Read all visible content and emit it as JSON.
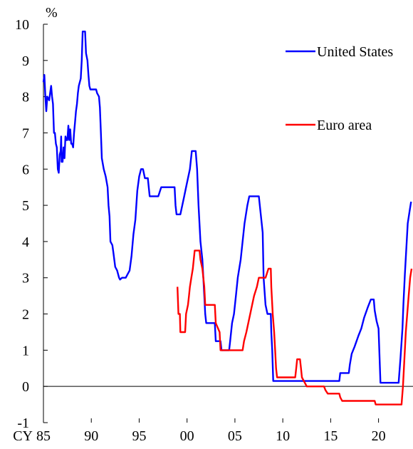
{
  "chart_data": {
    "type": "line",
    "title": "",
    "ylabel": "%",
    "xlabel": "",
    "x_axis_prefix": "CY",
    "ylim": [
      -1,
      10
    ],
    "xlim": [
      1985,
      2023.6
    ],
    "yticks": [
      "-1",
      "0",
      "1",
      "2",
      "3",
      "4",
      "5",
      "6",
      "7",
      "8",
      "9",
      "10"
    ],
    "xticks": [
      {
        "x": 1985,
        "label": "85"
      },
      {
        "x": 1990,
        "label": "90"
      },
      {
        "x": 1995,
        "label": "95"
      },
      {
        "x": 2000,
        "label": "00"
      },
      {
        "x": 2005,
        "label": "05"
      },
      {
        "x": 2010,
        "label": "10"
      },
      {
        "x": 2015,
        "label": "15"
      },
      {
        "x": 2020,
        "label": "20"
      }
    ],
    "grid": false,
    "zero_line": true,
    "legend": "right",
    "series": [
      {
        "name": "United States",
        "color": "#0000ff",
        "points": [
          [
            1985.0,
            8.4
          ],
          [
            1985.1,
            8.6
          ],
          [
            1985.2,
            8.0
          ],
          [
            1985.3,
            7.6
          ],
          [
            1985.4,
            8.0
          ],
          [
            1985.6,
            7.9
          ],
          [
            1985.7,
            8.1
          ],
          [
            1985.8,
            8.3
          ],
          [
            1985.9,
            8.0
          ],
          [
            1986.0,
            7.8
          ],
          [
            1986.1,
            7.0
          ],
          [
            1986.2,
            7.0
          ],
          [
            1986.3,
            6.7
          ],
          [
            1986.4,
            6.6
          ],
          [
            1986.5,
            6.0
          ],
          [
            1986.6,
            5.9
          ],
          [
            1986.7,
            6.4
          ],
          [
            1986.8,
            6.5
          ],
          [
            1986.85,
            6.9
          ],
          [
            1986.9,
            6.2
          ],
          [
            1987.0,
            6.2
          ],
          [
            1987.1,
            6.6
          ],
          [
            1987.2,
            6.3
          ],
          [
            1987.3,
            6.9
          ],
          [
            1987.4,
            6.8
          ],
          [
            1987.5,
            6.8
          ],
          [
            1987.6,
            7.2
          ],
          [
            1987.7,
            6.8
          ],
          [
            1987.8,
            7.1
          ],
          [
            1987.9,
            6.7
          ],
          [
            1988.0,
            6.7
          ],
          [
            1988.1,
            6.6
          ],
          [
            1988.2,
            7.0
          ],
          [
            1988.3,
            7.3
          ],
          [
            1988.4,
            7.6
          ],
          [
            1988.5,
            7.8
          ],
          [
            1988.6,
            8.1
          ],
          [
            1988.7,
            8.3
          ],
          [
            1988.9,
            8.5
          ],
          [
            1989.0,
            9.0
          ],
          [
            1989.1,
            9.8
          ],
          [
            1989.2,
            9.8
          ],
          [
            1989.35,
            9.8
          ],
          [
            1989.45,
            9.2
          ],
          [
            1989.6,
            9.0
          ],
          [
            1989.7,
            8.6
          ],
          [
            1989.8,
            8.3
          ],
          [
            1989.9,
            8.2
          ],
          [
            1990.1,
            8.2
          ],
          [
            1990.3,
            8.2
          ],
          [
            1990.5,
            8.2
          ],
          [
            1990.6,
            8.1
          ],
          [
            1990.8,
            8.0
          ],
          [
            1990.9,
            7.7
          ],
          [
            1991.0,
            7.0
          ],
          [
            1991.1,
            6.3
          ],
          [
            1991.3,
            6.0
          ],
          [
            1991.5,
            5.8
          ],
          [
            1991.7,
            5.5
          ],
          [
            1991.8,
            5.0
          ],
          [
            1991.9,
            4.7
          ],
          [
            1992.0,
            4.0
          ],
          [
            1992.2,
            3.9
          ],
          [
            1992.3,
            3.7
          ],
          [
            1992.5,
            3.3
          ],
          [
            1992.7,
            3.2
          ],
          [
            1992.9,
            3.0
          ],
          [
            1993.0,
            2.95
          ],
          [
            1993.2,
            3.0
          ],
          [
            1993.4,
            3.0
          ],
          [
            1993.6,
            3.0
          ],
          [
            1993.8,
            3.1
          ],
          [
            1994.0,
            3.2
          ],
          [
            1994.2,
            3.6
          ],
          [
            1994.4,
            4.2
          ],
          [
            1994.6,
            4.6
          ],
          [
            1994.8,
            5.4
          ],
          [
            1995.0,
            5.8
          ],
          [
            1995.2,
            6.0
          ],
          [
            1995.4,
            6.0
          ],
          [
            1995.6,
            5.75
          ],
          [
            1995.9,
            5.75
          ],
          [
            1996.1,
            5.25
          ],
          [
            1996.5,
            5.25
          ],
          [
            1997.0,
            5.25
          ],
          [
            1997.3,
            5.5
          ],
          [
            1997.8,
            5.5
          ],
          [
            1998.3,
            5.5
          ],
          [
            1998.7,
            5.5
          ],
          [
            1998.8,
            5.0
          ],
          [
            1998.9,
            4.75
          ],
          [
            1999.3,
            4.75
          ],
          [
            1999.5,
            5.0
          ],
          [
            1999.7,
            5.25
          ],
          [
            1999.9,
            5.5
          ],
          [
            2000.1,
            5.75
          ],
          [
            2000.3,
            6.0
          ],
          [
            2000.5,
            6.5
          ],
          [
            2000.9,
            6.5
          ],
          [
            2001.05,
            6.0
          ],
          [
            2001.2,
            5.0
          ],
          [
            2001.4,
            4.0
          ],
          [
            2001.6,
            3.5
          ],
          [
            2001.8,
            2.5
          ],
          [
            2001.9,
            2.0
          ],
          [
            2002.0,
            1.75
          ],
          [
            2002.5,
            1.75
          ],
          [
            2002.9,
            1.75
          ],
          [
            2003.0,
            1.25
          ],
          [
            2003.5,
            1.25
          ],
          [
            2003.6,
            1.0
          ],
          [
            2004.4,
            1.0
          ],
          [
            2004.5,
            1.25
          ],
          [
            2004.7,
            1.75
          ],
          [
            2004.9,
            2.0
          ],
          [
            2005.1,
            2.5
          ],
          [
            2005.3,
            3.0
          ],
          [
            2005.6,
            3.5
          ],
          [
            2005.8,
            4.0
          ],
          [
            2006.0,
            4.5
          ],
          [
            2006.3,
            5.0
          ],
          [
            2006.5,
            5.25
          ],
          [
            2007.5,
            5.25
          ],
          [
            2007.7,
            4.75
          ],
          [
            2007.9,
            4.25
          ],
          [
            2008.0,
            3.0
          ],
          [
            2008.2,
            2.25
          ],
          [
            2008.4,
            2.0
          ],
          [
            2008.75,
            2.0
          ],
          [
            2008.8,
            1.5
          ],
          [
            2008.9,
            1.0
          ],
          [
            2009.0,
            0.15
          ],
          [
            2010.0,
            0.15
          ],
          [
            2012.0,
            0.15
          ],
          [
            2014.0,
            0.15
          ],
          [
            2015.9,
            0.15
          ],
          [
            2016.0,
            0.37
          ],
          [
            2016.9,
            0.37
          ],
          [
            2017.0,
            0.6
          ],
          [
            2017.2,
            0.9
          ],
          [
            2017.5,
            1.1
          ],
          [
            2017.9,
            1.4
          ],
          [
            2018.2,
            1.6
          ],
          [
            2018.5,
            1.9
          ],
          [
            2018.9,
            2.2
          ],
          [
            2019.2,
            2.4
          ],
          [
            2019.5,
            2.4
          ],
          [
            2019.6,
            2.1
          ],
          [
            2019.8,
            1.8
          ],
          [
            2020.0,
            1.6
          ],
          [
            2020.2,
            0.1
          ],
          [
            2021.0,
            0.1
          ],
          [
            2022.1,
            0.1
          ],
          [
            2022.3,
            0.8
          ],
          [
            2022.5,
            1.6
          ],
          [
            2022.6,
            2.3
          ],
          [
            2022.75,
            3.1
          ],
          [
            2022.9,
            3.8
          ],
          [
            2023.05,
            4.5
          ],
          [
            2023.25,
            4.85
          ],
          [
            2023.4,
            5.1
          ]
        ]
      },
      {
        "name": "Euro area",
        "color": "#ff0000",
        "points": [
          [
            1999.0,
            2.75
          ],
          [
            1999.1,
            2.0
          ],
          [
            1999.25,
            2.0
          ],
          [
            1999.3,
            1.5
          ],
          [
            1999.5,
            1.5
          ],
          [
            1999.8,
            1.5
          ],
          [
            1999.9,
            2.0
          ],
          [
            2000.1,
            2.25
          ],
          [
            2000.2,
            2.5
          ],
          [
            2000.3,
            2.75
          ],
          [
            2000.45,
            3.0
          ],
          [
            2000.6,
            3.25
          ],
          [
            2000.8,
            3.75
          ],
          [
            2001.3,
            3.75
          ],
          [
            2001.4,
            3.5
          ],
          [
            2001.6,
            3.25
          ],
          [
            2001.8,
            2.75
          ],
          [
            2001.9,
            2.25
          ],
          [
            2002.9,
            2.25
          ],
          [
            2003.0,
            1.75
          ],
          [
            2003.4,
            1.5
          ],
          [
            2003.5,
            1.0
          ],
          [
            2005.8,
            1.0
          ],
          [
            2005.95,
            1.25
          ],
          [
            2006.2,
            1.5
          ],
          [
            2006.4,
            1.75
          ],
          [
            2006.6,
            2.0
          ],
          [
            2006.8,
            2.25
          ],
          [
            2007.0,
            2.5
          ],
          [
            2007.3,
            2.75
          ],
          [
            2007.5,
            3.0
          ],
          [
            2008.2,
            3.0
          ],
          [
            2008.5,
            3.25
          ],
          [
            2008.75,
            3.25
          ],
          [
            2008.8,
            2.75
          ],
          [
            2008.95,
            2.0
          ],
          [
            2009.1,
            1.5
          ],
          [
            2009.2,
            1.0
          ],
          [
            2009.3,
            0.5
          ],
          [
            2009.4,
            0.25
          ],
          [
            2011.3,
            0.25
          ],
          [
            2011.4,
            0.5
          ],
          [
            2011.5,
            0.75
          ],
          [
            2011.8,
            0.75
          ],
          [
            2011.9,
            0.5
          ],
          [
            2012.0,
            0.25
          ],
          [
            2012.5,
            0.0
          ],
          [
            2014.3,
            0.0
          ],
          [
            2014.45,
            -0.1
          ],
          [
            2014.7,
            -0.2
          ],
          [
            2015.9,
            -0.2
          ],
          [
            2016.0,
            -0.3
          ],
          [
            2016.2,
            -0.4
          ],
          [
            2019.6,
            -0.4
          ],
          [
            2019.7,
            -0.5
          ],
          [
            2022.4,
            -0.5
          ],
          [
            2022.55,
            0.0
          ],
          [
            2022.7,
            0.75
          ],
          [
            2022.85,
            1.5
          ],
          [
            2023.0,
            2.0
          ],
          [
            2023.15,
            2.5
          ],
          [
            2023.3,
            3.0
          ],
          [
            2023.45,
            3.25
          ]
        ]
      }
    ]
  }
}
